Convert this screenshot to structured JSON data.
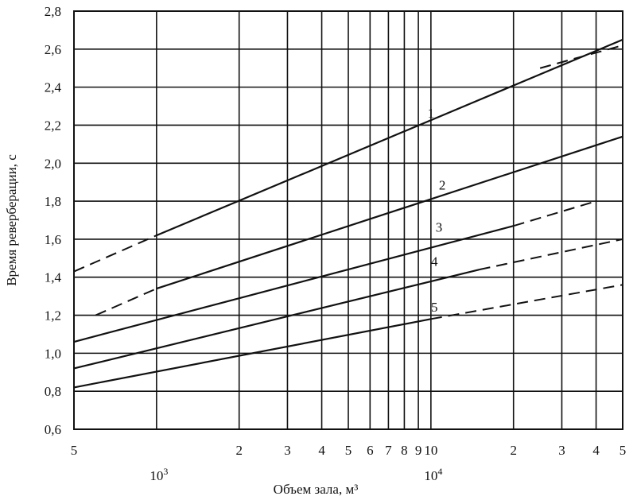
{
  "chart_data": {
    "type": "line",
    "xlabel": "Объем зала, м³",
    "ylabel": "Время реверберации, с",
    "x_scale": "log",
    "xlim": [
      500,
      50000
    ],
    "ylim": [
      0.6,
      2.8
    ],
    "grid": true,
    "y_ticks": [
      {
        "value": 0.6,
        "label": "0,6"
      },
      {
        "value": 0.8,
        "label": "0,8"
      },
      {
        "value": 1.0,
        "label": "1,0"
      },
      {
        "value": 1.2,
        "label": "1,2"
      },
      {
        "value": 1.4,
        "label": "1,4"
      },
      {
        "value": 1.6,
        "label": "1,6"
      },
      {
        "value": 1.8,
        "label": "1,8"
      },
      {
        "value": 2.0,
        "label": "2,0"
      },
      {
        "value": 2.2,
        "label": "2,2"
      },
      {
        "value": 2.4,
        "label": "2,4"
      },
      {
        "value": 2.6,
        "label": "2,6"
      },
      {
        "value": 2.8,
        "label": "2,8"
      }
    ],
    "x_ticks": [
      {
        "value": 500,
        "label": "5"
      },
      {
        "value": 2000,
        "label": "2"
      },
      {
        "value": 3000,
        "label": "3"
      },
      {
        "value": 4000,
        "label": "4"
      },
      {
        "value": 5000,
        "label": "5"
      },
      {
        "value": 6000,
        "label": "6"
      },
      {
        "value": 7000,
        "label": "7"
      },
      {
        "value": 8000,
        "label": "8"
      },
      {
        "value": 9000,
        "label": "9"
      },
      {
        "value": 10000,
        "label": "10"
      },
      {
        "value": 20000,
        "label": "2"
      },
      {
        "value": 30000,
        "label": "3"
      },
      {
        "value": 40000,
        "label": "4"
      },
      {
        "value": 50000,
        "label": "5"
      }
    ],
    "x_decade_labels": [
      {
        "value": 1000,
        "mantissa": "10",
        "exponent": "3"
      },
      {
        "value": 10000,
        "mantissa": "10",
        "exponent": "4"
      }
    ],
    "x_gridlines": [
      500,
      1000,
      2000,
      3000,
      4000,
      5000,
      6000,
      7000,
      8000,
      9000,
      10000,
      20000,
      30000,
      40000,
      50000
    ],
    "series": [
      {
        "name": "1",
        "solid": {
          "x": [
            1000,
            50000
          ],
          "y": [
            1.62,
            2.65
          ]
        },
        "dashed": [
          {
            "x": [
              500,
              1000
            ],
            "y": [
              1.43,
              1.62
            ]
          },
          {
            "x": [
              25000,
              50000
            ],
            "y": [
              2.5,
              2.62
            ]
          }
        ]
      },
      {
        "name": "2",
        "solid": {
          "x": [
            1000,
            50000
          ],
          "y": [
            1.34,
            2.14
          ]
        },
        "dashed": [
          {
            "x": [
              600,
              1000
            ],
            "y": [
              1.2,
              1.34
            ]
          }
        ]
      },
      {
        "name": "3",
        "solid": {
          "x": [
            500,
            20000
          ],
          "y": [
            1.06,
            1.67
          ]
        },
        "dashed": [
          {
            "x": [
              20000,
              40000
            ],
            "y": [
              1.67,
              1.8
            ]
          }
        ]
      },
      {
        "name": "4",
        "solid": {
          "x": [
            500,
            15000
          ],
          "y": [
            0.92,
            1.44
          ]
        },
        "dashed": [
          {
            "x": [
              15000,
              50000
            ],
            "y": [
              1.44,
              1.6
            ]
          }
        ]
      },
      {
        "name": "5",
        "solid": {
          "x": [
            500,
            10000
          ],
          "y": [
            0.82,
            1.18
          ]
        },
        "dashed": [
          {
            "x": [
              10000,
              50000
            ],
            "y": [
              1.18,
              1.36
            ]
          }
        ]
      }
    ],
    "curve_labels": [
      {
        "series": "1",
        "x": 10000,
        "y": 2.24
      },
      {
        "series": "2",
        "x": 11000,
        "y": 1.86
      },
      {
        "series": "3",
        "x": 10700,
        "y": 1.64
      },
      {
        "series": "4",
        "x": 10300,
        "y": 1.46
      },
      {
        "series": "5",
        "x": 10300,
        "y": 1.22
      }
    ]
  }
}
